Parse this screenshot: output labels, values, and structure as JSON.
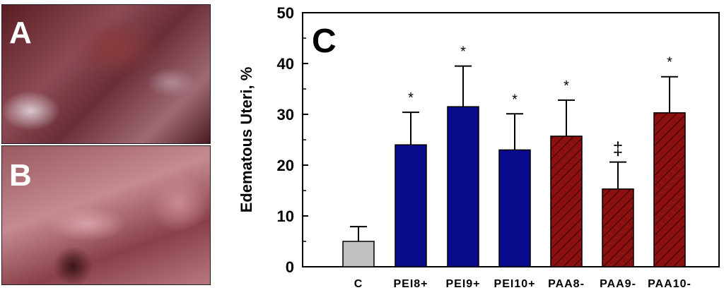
{
  "panels": {
    "a": {
      "letter": "A"
    },
    "b": {
      "letter": "B"
    }
  },
  "chart_data": {
    "type": "bar",
    "panel_label": "C",
    "ylabel": "Edematous Uteri, %",
    "xlabel": "",
    "ylim": [
      0,
      50
    ],
    "yticks": [
      0,
      10,
      20,
      30,
      40,
      50
    ],
    "categories": [
      "C",
      "PEI8+",
      "PEI9+",
      "PEI10+",
      "PAA8-",
      "PAA9-",
      "PAA10-"
    ],
    "values": [
      5,
      24,
      31.5,
      23,
      25.7,
      15.3,
      30.3
    ],
    "errors": [
      2.9,
      6.4,
      8,
      7.1,
      7.1,
      5.3,
      7.1
    ],
    "annotations": [
      "",
      "*",
      "*",
      "*",
      "*",
      "‡",
      "*"
    ],
    "bar_fills": [
      "gray",
      "blue",
      "blue",
      "blue",
      "hatched-red",
      "hatched-red",
      "hatched-red"
    ],
    "colors": {
      "control": "#c0c0c0",
      "pei": "#0a0a8c",
      "paa": "#8b1010",
      "hatch": "#3a0000"
    }
  }
}
